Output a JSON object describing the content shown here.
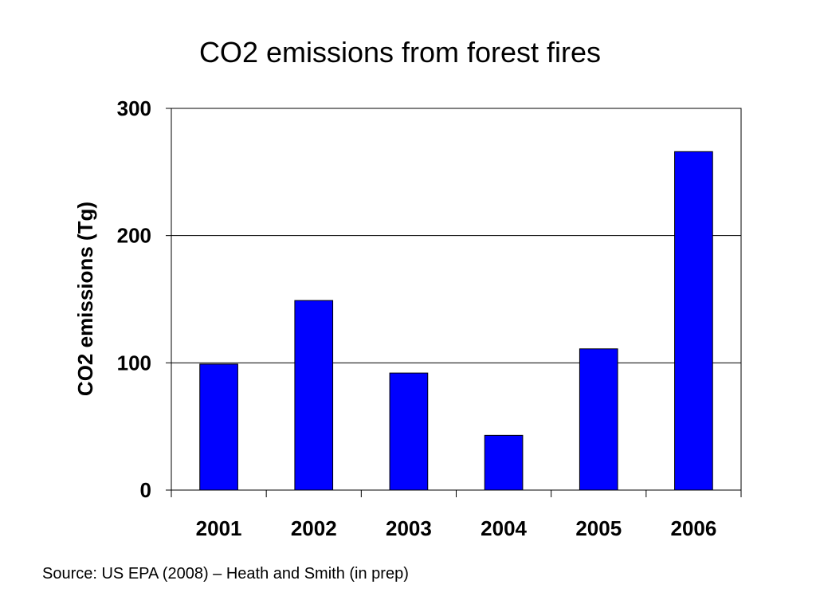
{
  "chart_data": {
    "type": "bar",
    "title": "CO2 emissions from forest fires",
    "xlabel": "",
    "ylabel": "CO2 emissions (Tg)",
    "categories": [
      "2001",
      "2002",
      "2003",
      "2004",
      "2005",
      "2006"
    ],
    "values": [
      99,
      149,
      92,
      43,
      111,
      266
    ],
    "ylim": [
      0,
      300
    ],
    "yticks": [
      0,
      100,
      200,
      300
    ],
    "grid": true,
    "bar_color": "#0000ff",
    "bar_edge_color": "#000000"
  },
  "source_note": "Source:  US EPA (2008) – Heath and Smith (in prep)"
}
